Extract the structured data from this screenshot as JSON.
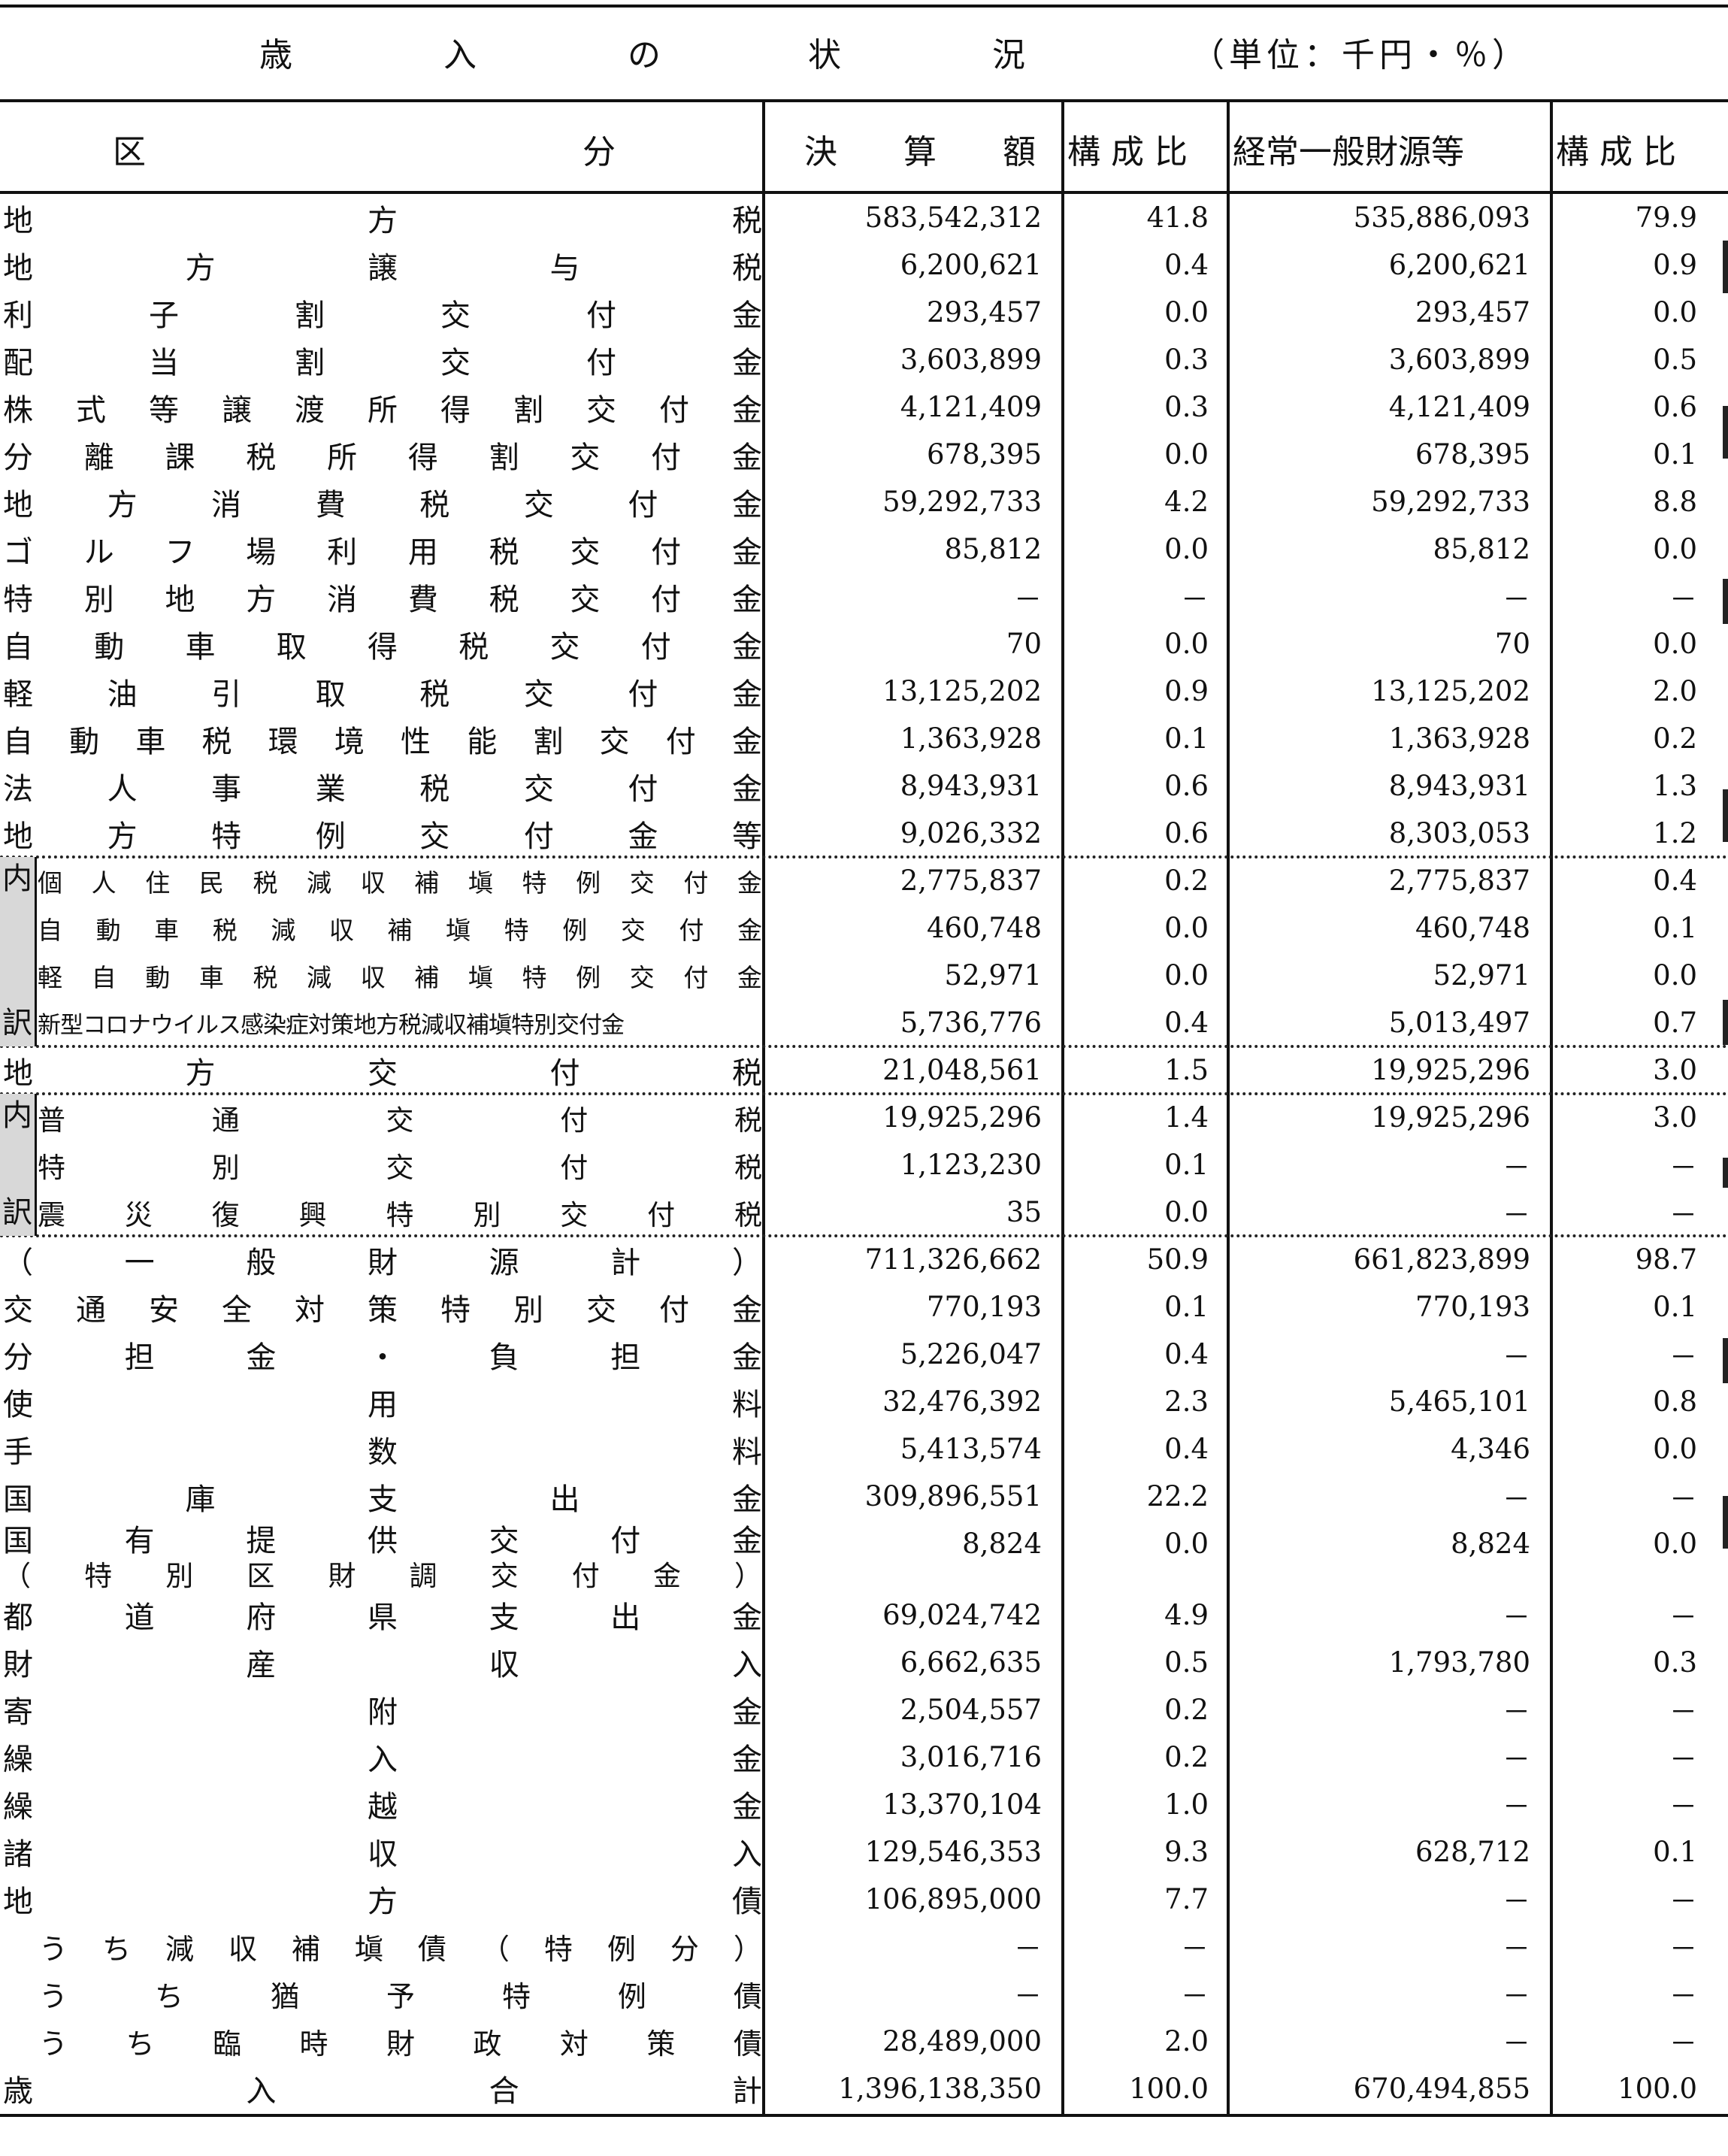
{
  "title": {
    "chars": [
      "歳",
      "入",
      "の",
      "状",
      "況"
    ],
    "unit": "（単位：千円・％）"
  },
  "headers": {
    "kubun_a": "区",
    "kubun_b": "分",
    "kessan": "決　　算　　額",
    "kosei1": "構 成 比",
    "ippan": "経常一般財源等",
    "kosei2": "構 成 比"
  },
  "rows": [
    {
      "label": "地方税",
      "v1": "583,542,312",
      "v2": "41.8",
      "v3": "535,886,093",
      "v4": "79.9"
    },
    {
      "label": "地方譲与税",
      "v1": "6,200,621",
      "v2": "0.4",
      "v3": "6,200,621",
      "v4": "0.9"
    },
    {
      "label": "利子割交付金",
      "v1": "293,457",
      "v2": "0.0",
      "v3": "293,457",
      "v4": "0.0"
    },
    {
      "label": "配当割交付金",
      "v1": "3,603,899",
      "v2": "0.3",
      "v3": "3,603,899",
      "v4": "0.5"
    },
    {
      "label": "株式等譲渡所得割交付金",
      "v1": "4,121,409",
      "v2": "0.3",
      "v3": "4,121,409",
      "v4": "0.6"
    },
    {
      "label": "分離課税所得割交付金",
      "v1": "678,395",
      "v2": "0.0",
      "v3": "678,395",
      "v4": "0.1"
    },
    {
      "label": "地方消費税交付金",
      "v1": "59,292,733",
      "v2": "4.2",
      "v3": "59,292,733",
      "v4": "8.8"
    },
    {
      "label": "ゴルフ場利用税交付金",
      "v1": "85,812",
      "v2": "0.0",
      "v3": "85,812",
      "v4": "0.0"
    },
    {
      "label": "特別地方消費税交付金",
      "v1": "－",
      "v2": "－",
      "v3": "－",
      "v4": "－"
    },
    {
      "label": "自動車取得税交付金",
      "v1": "70",
      "v2": "0.0",
      "v3": "70",
      "v4": "0.0"
    },
    {
      "label": "軽油引取税交付金",
      "v1": "13,125,202",
      "v2": "0.9",
      "v3": "13,125,202",
      "v4": "2.0"
    },
    {
      "label": "自動車税環境性能割交付金",
      "v1": "1,363,928",
      "v2": "0.1",
      "v3": "1,363,928",
      "v4": "0.2"
    },
    {
      "label": "法人事業税交付金",
      "v1": "8,943,931",
      "v2": "0.6",
      "v3": "8,943,931",
      "v4": "1.3"
    },
    {
      "label": "地方特例交付金等",
      "v1": "9,026,332",
      "v2": "0.6",
      "v3": "8,303,053",
      "v4": "1.2"
    },
    {
      "label": "個人住民税減収補塡特例交付金",
      "v1": "2,775,837",
      "v2": "0.2",
      "v3": "2,775,837",
      "v4": "0.4",
      "style": "small"
    },
    {
      "label": "自動車税減収補塡特例交付金",
      "v1": "460,748",
      "v2": "0.0",
      "v3": "460,748",
      "v4": "0.1",
      "style": "small"
    },
    {
      "label": "軽自動車税減収補塡特例交付金",
      "v1": "52,971",
      "v2": "0.0",
      "v3": "52,971",
      "v4": "0.0",
      "style": "small"
    },
    {
      "label": "新型コロナウイルス感染症対策地方税減収補塡特別交付金",
      "v1": "5,736,776",
      "v2": "0.4",
      "v3": "5,013,497",
      "v4": "0.7",
      "style": "tiny"
    },
    {
      "label": "地方交付税",
      "v1": "21,048,561",
      "v2": "1.5",
      "v3": "19,925,296",
      "v4": "3.0"
    },
    {
      "label": "普通交付税",
      "v1": "19,925,296",
      "v2": "1.4",
      "v3": "19,925,296",
      "v4": "3.0",
      "style": "sub"
    },
    {
      "label": "特別交付税",
      "v1": "1,123,230",
      "v2": "0.1",
      "v3": "－",
      "v4": "－",
      "style": "sub"
    },
    {
      "label": "震災復興特別交付税",
      "v1": "35",
      "v2": "0.0",
      "v3": "－",
      "v4": "－",
      "style": "sub"
    },
    {
      "label": "（一般財源計）",
      "v1": "711,326,662",
      "v2": "50.9",
      "v3": "661,823,899",
      "v4": "98.7"
    },
    {
      "label": "交通安全対策特別交付金",
      "v1": "770,193",
      "v2": "0.1",
      "v3": "770,193",
      "v4": "0.1"
    },
    {
      "label": "分担金・負担金",
      "v1": "5,226,047",
      "v2": "0.4",
      "v3": "－",
      "v4": "－"
    },
    {
      "label": "使用料",
      "v1": "32,476,392",
      "v2": "2.3",
      "v3": "5,465,101",
      "v4": "0.8"
    },
    {
      "label": "手数料",
      "v1": "5,413,574",
      "v2": "0.4",
      "v3": "4,346",
      "v4": "0.0"
    },
    {
      "label": "国庫支出金",
      "v1": "309,896,551",
      "v2": "22.2",
      "v3": "－",
      "v4": "－"
    },
    {
      "label": "国有提供交付金",
      "label2": "（特別区財調交付金）",
      "v1": "8,824",
      "v2": "0.0",
      "v3": "8,824",
      "v4": "0.0",
      "style": "double"
    },
    {
      "label": "都道府県支出金",
      "v1": "69,024,742",
      "v2": "4.9",
      "v3": "－",
      "v4": "－"
    },
    {
      "label": "財産収入",
      "v1": "6,662,635",
      "v2": "0.5",
      "v3": "1,793,780",
      "v4": "0.3"
    },
    {
      "label": "寄附金",
      "v1": "2,504,557",
      "v2": "0.2",
      "v3": "－",
      "v4": "－"
    },
    {
      "label": "繰入金",
      "v1": "3,016,716",
      "v2": "0.2",
      "v3": "－",
      "v4": "－"
    },
    {
      "label": "繰越金",
      "v1": "13,370,104",
      "v2": "1.0",
      "v3": "－",
      "v4": "－"
    },
    {
      "label": "諸収入",
      "v1": "129,546,353",
      "v2": "9.3",
      "v3": "628,712",
      "v4": "0.1"
    },
    {
      "label": "地方債",
      "v1": "106,895,000",
      "v2": "7.7",
      "v3": "－",
      "v4": "－"
    },
    {
      "label": "うち減収補塡債（特例分）",
      "v1": "－",
      "v2": "－",
      "v3": "－",
      "v4": "－",
      "style": "indent"
    },
    {
      "label": "うち猶予特例債",
      "v1": "－",
      "v2": "－",
      "v3": "－",
      "v4": "－",
      "style": "indent"
    },
    {
      "label": "うち臨時財政対策債",
      "v1": "28,489,000",
      "v2": "2.0",
      "v3": "－",
      "v4": "－",
      "style": "indent"
    },
    {
      "label": "歳入合計",
      "v1": "1,396,138,350",
      "v2": "100.0",
      "v3": "670,494,855",
      "v4": "100.0"
    }
  ],
  "naiyaku": {
    "top": "内",
    "bottom": "訳"
  }
}
